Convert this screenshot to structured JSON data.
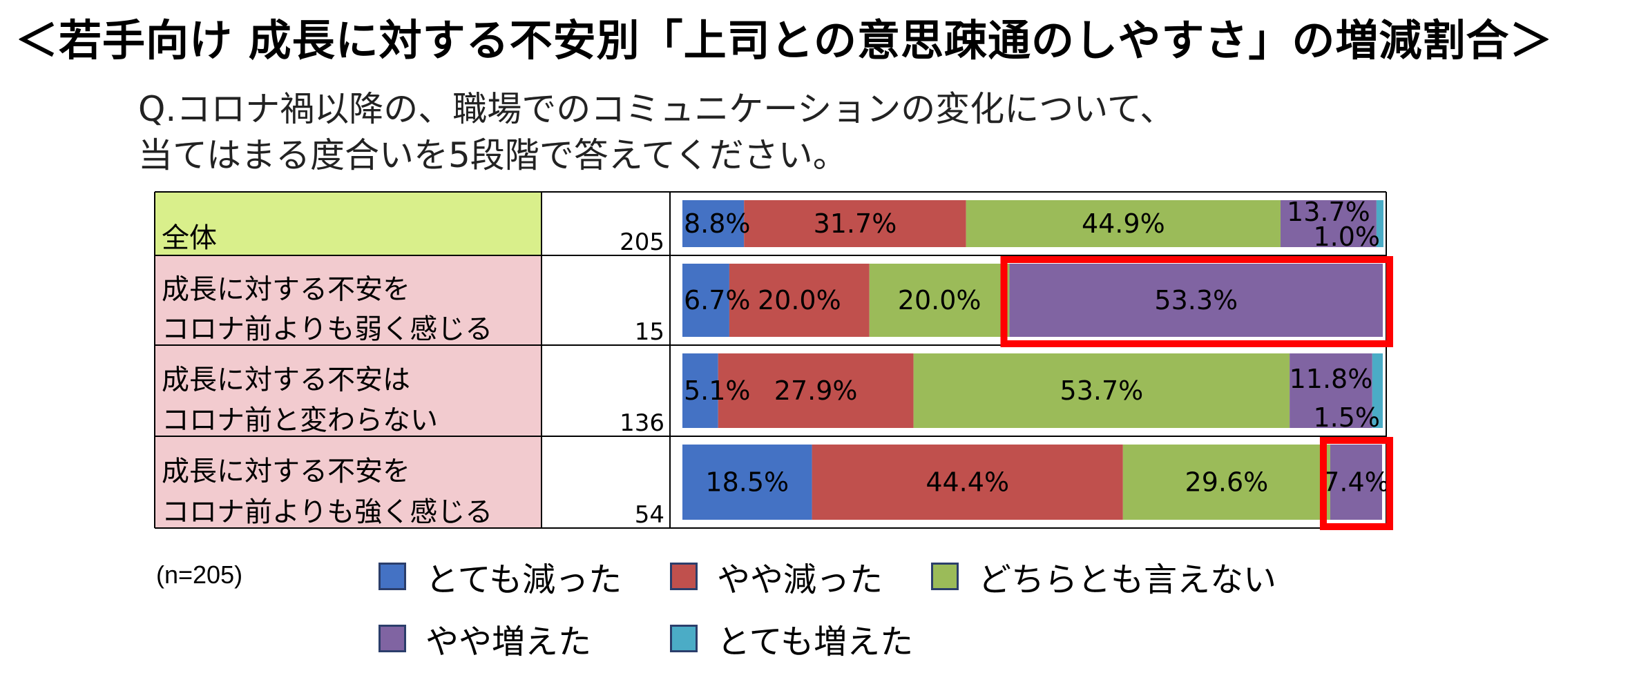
{
  "title": "＜若手向け 成長に対する不安別「上司との意思疎通のしやすさ」の増減割合＞",
  "question_line1": "Q.コロナ禍以降の、職場でのコミュニケーションの変化について、",
  "question_line2": "当てはまる度合いを5段階で答えてください。",
  "sample_note": "(n=205)",
  "colors": {
    "とても減った": "#4472c4",
    "やや減った": "#c0504d",
    "どちらとも言えない": "#9bbb59",
    "やや増えた": "#8064a2",
    "とても増えた": "#4bacc6",
    "highlight": "#ff0000",
    "row_total_bg": "#d9ef8b",
    "row_group_bg": "#f2cbcf"
  },
  "chart_data": {
    "type": "bar",
    "orientation": "horizontal",
    "stacked": true,
    "xlim": [
      0,
      100
    ],
    "unit": "%",
    "series_names": [
      "とても減った",
      "やや減った",
      "どちらとも言えない",
      "やや増えた",
      "とても増えた"
    ],
    "rows": [
      {
        "label_lines": [
          "全体"
        ],
        "n": "205",
        "values": [
          8.8,
          31.7,
          44.9,
          13.7,
          1.0
        ],
        "labels": [
          "8.8%",
          "31.7%",
          "44.9%",
          "13.7%",
          "1.0%"
        ],
        "highlight_series": []
      },
      {
        "label_lines": [
          "成長に対する不安を",
          "コロナ前よりも弱く感じる"
        ],
        "n": "15",
        "values": [
          6.7,
          20.0,
          20.0,
          53.3,
          0.0
        ],
        "labels": [
          "6.7%",
          "20.0%",
          "20.0%",
          "53.3%",
          ""
        ],
        "highlight_series": [
          3
        ]
      },
      {
        "label_lines": [
          "成長に対する不安は",
          "コロナ前と変わらない"
        ],
        "n": "136",
        "values": [
          5.1,
          27.9,
          53.7,
          11.8,
          1.5
        ],
        "labels": [
          "5.1%",
          "27.9%",
          "53.7%",
          "11.8%",
          "1.5%"
        ],
        "highlight_series": []
      },
      {
        "label_lines": [
          "成長に対する不安を",
          "コロナ前よりも強く感じる"
        ],
        "n": "54",
        "values": [
          18.5,
          44.4,
          29.6,
          7.4,
          0.0
        ],
        "labels": [
          "18.5%",
          "44.4%",
          "29.6%",
          "7.4%",
          ""
        ],
        "highlight_series": [
          3
        ]
      }
    ],
    "legend": [
      {
        "label": "とても減った"
      },
      {
        "label": "やや減った"
      },
      {
        "label": "どちらとも言えない"
      },
      {
        "label": "やや増えた"
      },
      {
        "label": "とても増えた"
      }
    ]
  }
}
